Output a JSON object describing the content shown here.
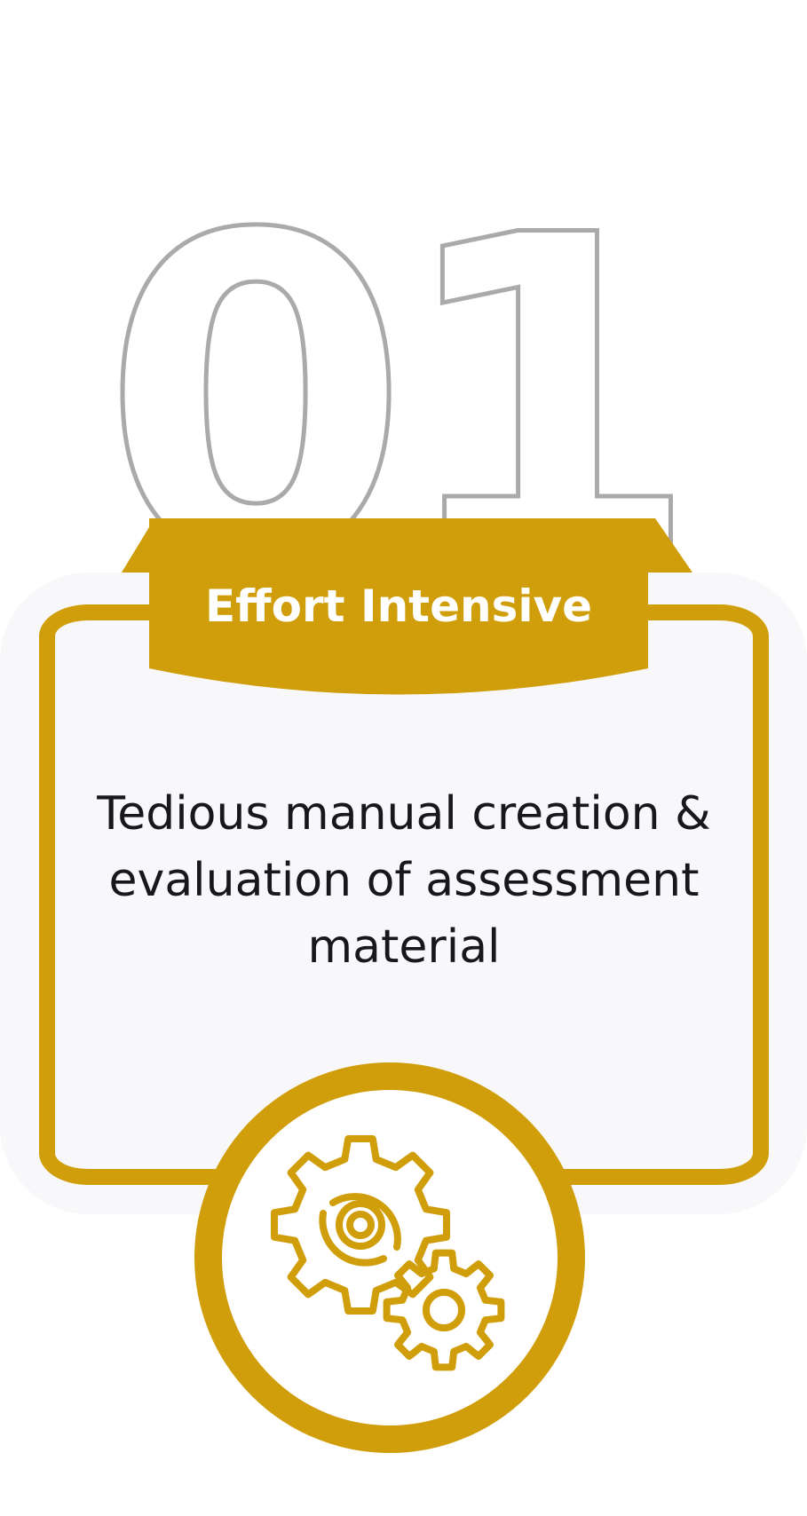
{
  "step": {
    "number": "01"
  },
  "card": {
    "title": "Effort Intensive",
    "description": "Tedious manual creation & evaluation of assessment material",
    "icon": "gears-icon"
  },
  "colors": {
    "accent": "#d09e0a",
    "card_background": "#f8f8fa",
    "number_outline": "#aaaaaa",
    "text": "#17171c",
    "title_text": "#ffffff"
  }
}
